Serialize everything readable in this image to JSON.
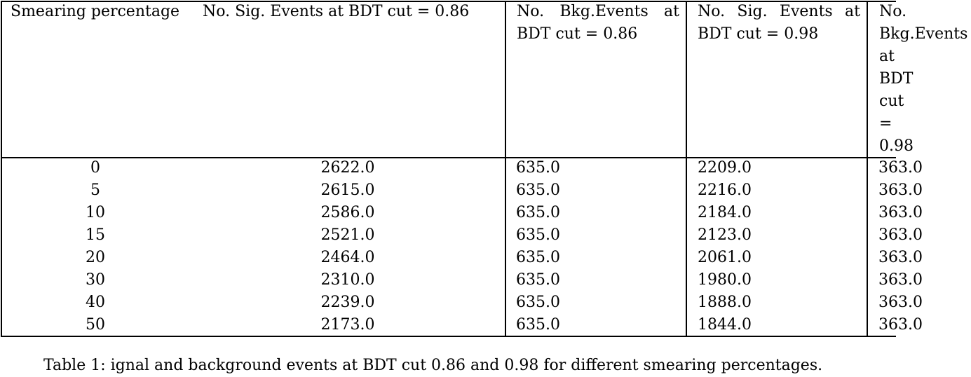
{
  "table": {
    "headers": [
      "Smearing percentage",
      "No. Sig. Events at BDT cut = 0.86",
      "No. Bkg.Events at BDT cut = 0.86",
      "No. Sig. Events at BDT cut = 0.98",
      [
        "No.",
        "Bkg.Events",
        "at",
        "BDT",
        "cut",
        "=",
        "0.98"
      ]
    ],
    "rows": [
      [
        "0",
        "2622.0",
        "635.0",
        "2209.0",
        "363.0"
      ],
      [
        "5",
        "2615.0",
        "635.0",
        "2216.0",
        "363.0"
      ],
      [
        "10",
        "2586.0",
        "635.0",
        "2184.0",
        "363.0"
      ],
      [
        "15",
        "2521.0",
        "635.0",
        "2123.0",
        "363.0"
      ],
      [
        "20",
        "2464.0",
        "635.0",
        "2061.0",
        "363.0"
      ],
      [
        "30",
        "2310.0",
        "635.0",
        "1980.0",
        "363.0"
      ],
      [
        "40",
        "2239.0",
        "635.0",
        "1888.0",
        "363.0"
      ],
      [
        "50",
        "2173.0",
        "635.0",
        "1844.0",
        "363.0"
      ]
    ]
  },
  "caption": "Table 1: ignal and background events at BDT cut 0.86 and 0.98 for different smearing percentages."
}
